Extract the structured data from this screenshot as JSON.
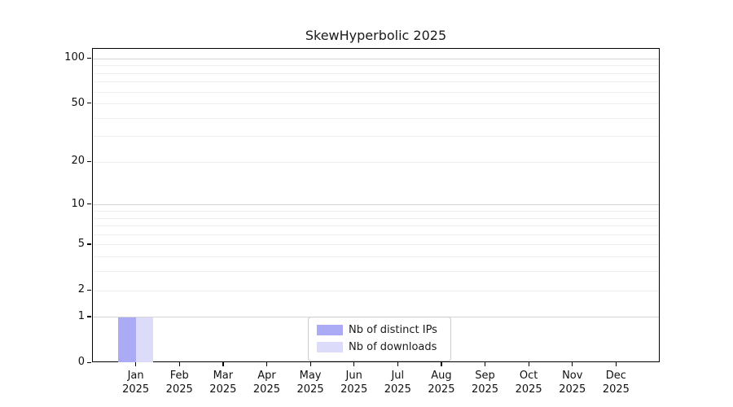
{
  "chart_data": {
    "type": "bar",
    "title": "SkewHyperbolic 2025",
    "categories": [
      "Jan 2025",
      "Feb 2025",
      "Mar 2025",
      "Apr 2025",
      "May 2025",
      "Jun 2025",
      "Jul 2025",
      "Aug 2025",
      "Sep 2025",
      "Oct 2025",
      "Nov 2025",
      "Dec 2025"
    ],
    "series": [
      {
        "name": "Nb of distinct IPs",
        "color": "#aaaaf5",
        "values": [
          1,
          0,
          0,
          0,
          0,
          0,
          0,
          0,
          0,
          0,
          0,
          0
        ]
      },
      {
        "name": "Nb of downloads",
        "color": "#dcdcfa",
        "values": [
          1,
          0,
          0,
          0,
          0,
          0,
          0,
          0,
          0,
          0,
          0,
          0
        ]
      }
    ],
    "xlabel": "",
    "ylabel": "",
    "yscale": "log1p",
    "ylim": [
      0,
      120
    ],
    "yticks": [
      0,
      1,
      2,
      5,
      10,
      20,
      50,
      100
    ],
    "minor_gridlines": [
      2,
      3,
      4,
      5,
      6,
      7,
      8,
      9,
      20,
      30,
      40,
      50,
      60,
      70,
      80,
      90
    ],
    "major_gridlines": [
      1,
      10,
      100
    ],
    "grid": "horizontal",
    "legend_position": "lower center",
    "colors": {
      "major_grid": "#d4d4d4",
      "minor_grid": "#efefef",
      "axis": "#000000",
      "background": "#ffffff"
    }
  }
}
